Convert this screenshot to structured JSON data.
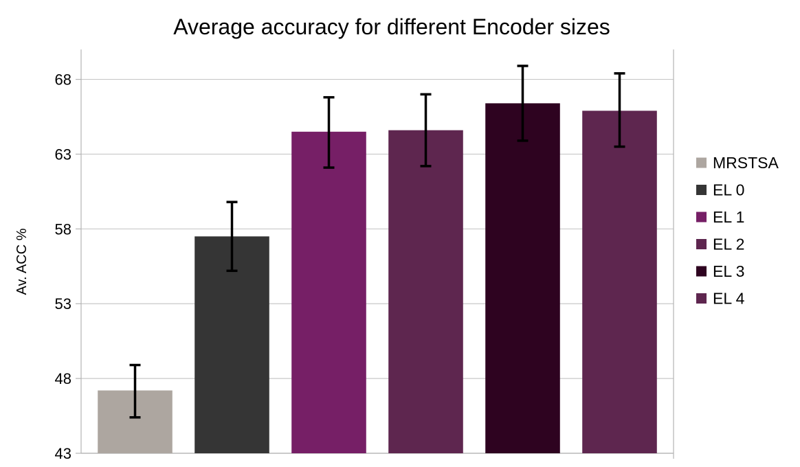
{
  "chart_data": {
    "type": "bar",
    "title": "Average accuracy for different Encoder sizes",
    "xlabel": "",
    "ylabel": "Av. ACC %",
    "ylim": [
      43,
      70
    ],
    "yticks": [
      43,
      48,
      53,
      58,
      63,
      68
    ],
    "grid": true,
    "legend_position": "right",
    "error_bars": true,
    "series": [
      {
        "name": "MRSTSA",
        "value": 47.2,
        "error_low": 45.4,
        "error_high": 48.9,
        "color": "#ada6a0"
      },
      {
        "name": "EL 0",
        "value": 57.5,
        "error_low": 55.2,
        "error_high": 59.8,
        "color": "#353535"
      },
      {
        "name": "EL 1",
        "value": 64.5,
        "error_low": 62.1,
        "error_high": 66.8,
        "color": "#761f66"
      },
      {
        "name": "EL 2",
        "value": 64.6,
        "error_low": 62.2,
        "error_high": 67.0,
        "color": "#5e264f"
      },
      {
        "name": "EL 3",
        "value": 66.4,
        "error_low": 63.9,
        "error_high": 68.9,
        "color": "#2e0320"
      },
      {
        "name": "EL 4",
        "value": 65.9,
        "error_low": 63.5,
        "error_high": 68.4,
        "color": "#5e264f"
      }
    ]
  }
}
